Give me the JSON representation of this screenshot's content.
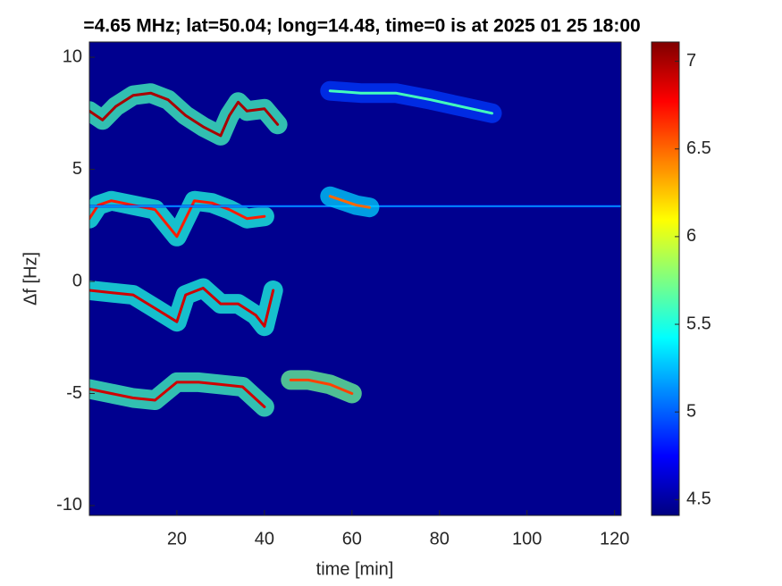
{
  "chart_data": {
    "type": "spectrogram",
    "title": "=4.65 MHz;  lat=50.04; long=14.48, time=0 is at 2025 01 25 18:00",
    "xlabel": "time [min]",
    "ylabel": "Δf [Hz]",
    "xlim": [
      0,
      121.5
    ],
    "ylim": [
      -10.44,
      10.68
    ],
    "xticks": [
      20,
      40,
      60,
      80,
      100,
      120
    ],
    "yticks": [
      -10,
      -5,
      0,
      5,
      10
    ],
    "clim": [
      4.41,
      7.11
    ],
    "cticks": [
      4.5,
      5,
      5.5,
      6,
      6.5,
      7
    ],
    "colormap": "jet",
    "background": 4.45,
    "series": [
      {
        "x": [
          0,
          3,
          6,
          10,
          14,
          18,
          22,
          26,
          30,
          32,
          34,
          36,
          40,
          43
        ],
        "values": [
          7.6,
          7.2,
          7.8,
          8.3,
          8.4,
          8.1,
          7.4,
          6.9,
          6.5,
          7.4,
          8.0,
          7.6,
          7.7,
          7.0
        ],
        "level": 7.0,
        "halo": 5.6
      },
      {
        "x": [
          55,
          62,
          70,
          78,
          85,
          92
        ],
        "values": [
          8.5,
          8.4,
          8.4,
          8.1,
          7.8,
          7.5
        ],
        "level": 5.6,
        "halo": 4.9
      },
      {
        "x": [
          0,
          2,
          5,
          10,
          15,
          20,
          24,
          28,
          32,
          36,
          40
        ],
        "values": [
          2.8,
          3.4,
          3.6,
          3.4,
          3.2,
          2.0,
          3.6,
          3.5,
          3.2,
          2.8,
          2.9
        ],
        "level": 6.7,
        "halo": 5.5
      },
      {
        "x": [
          0,
          121.5
        ],
        "values": [
          3.35,
          3.35
        ],
        "level": 5.2,
        "halo": 4.7
      },
      {
        "x": [
          55,
          58,
          61,
          64
        ],
        "values": [
          3.8,
          3.6,
          3.4,
          3.3
        ],
        "level": 6.5,
        "halo": 5.3
      },
      {
        "x": [
          0,
          5,
          10,
          15,
          20,
          22,
          26,
          30,
          34,
          38,
          40,
          42
        ],
        "values": [
          -0.4,
          -0.5,
          -0.6,
          -1.2,
          -1.8,
          -0.6,
          -0.3,
          -1.0,
          -1.0,
          -1.5,
          -2.0,
          -0.4
        ],
        "level": 6.9,
        "halo": 5.5
      },
      {
        "x": [
          0,
          5,
          10,
          15,
          20,
          25,
          30,
          35,
          40
        ],
        "values": [
          -4.8,
          -5.0,
          -5.2,
          -5.3,
          -4.5,
          -4.5,
          -4.6,
          -4.7,
          -5.6
        ],
        "level": 6.9,
        "halo": 5.6
      },
      {
        "x": [
          46,
          50,
          55,
          60
        ],
        "values": [
          -4.4,
          -4.4,
          -4.6,
          -5.0
        ],
        "level": 6.6,
        "halo": 5.7
      }
    ]
  }
}
